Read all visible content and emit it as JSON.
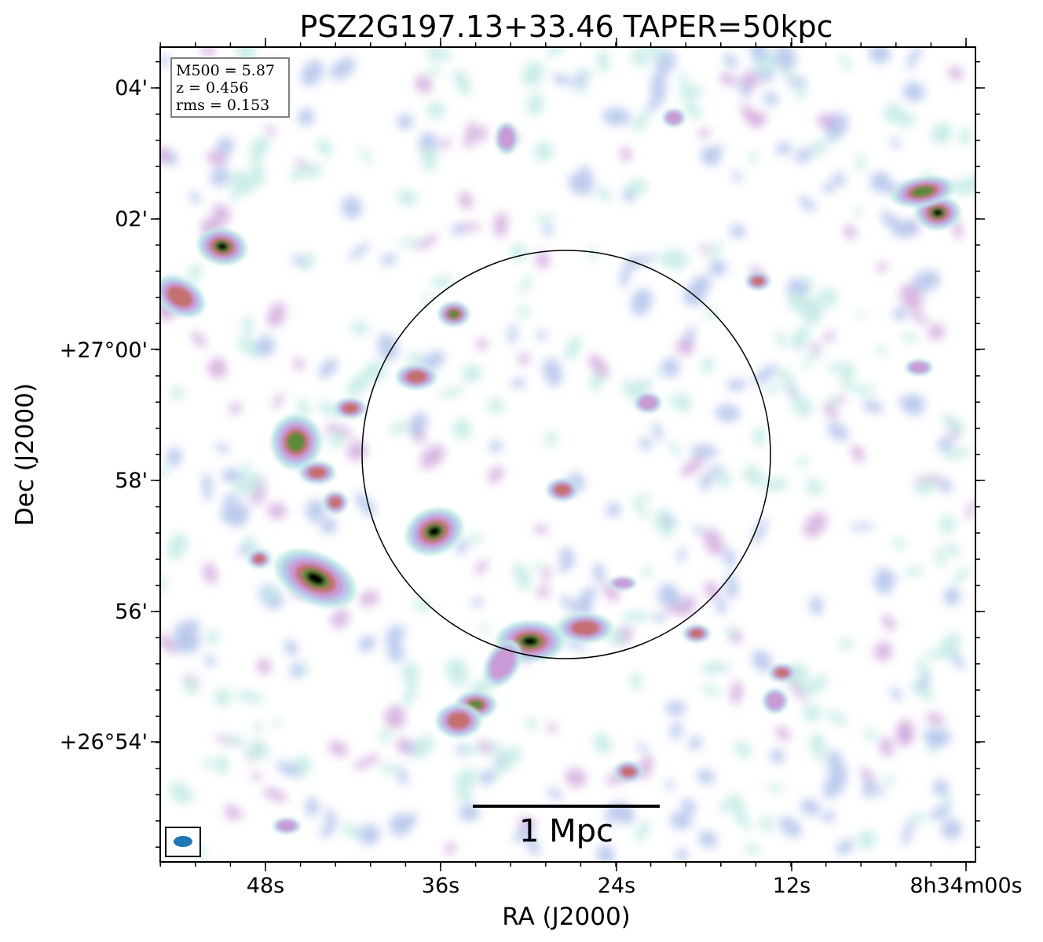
{
  "chart_data": {
    "type": "heatmap",
    "title": "PSZ2G197.13+33.46 TAPER=50kpc",
    "xlabel": "RA (J2000)",
    "ylabel": "Dec (J2000)",
    "x_ticks": [
      "48s",
      "36s",
      "24s",
      "12s",
      "8h34m00s"
    ],
    "y_ticks": [
      "04'",
      "02'",
      "+27°00'",
      "58'",
      "56'",
      "+26°54'"
    ],
    "info_box": {
      "m500": "M500 = 5.87",
      "z": "z = 0.456",
      "rms": "rms = 0.153"
    },
    "scale_bar_label": "1 Mpc",
    "colors": {
      "faint": "#c5ece6",
      "low": "#b7c8ec",
      "mid": "#c99ad6",
      "high": "#c4706e",
      "higher": "#5a8a3a",
      "peak": "#000000",
      "beam": "#1f77b4"
    },
    "grid": false
  }
}
